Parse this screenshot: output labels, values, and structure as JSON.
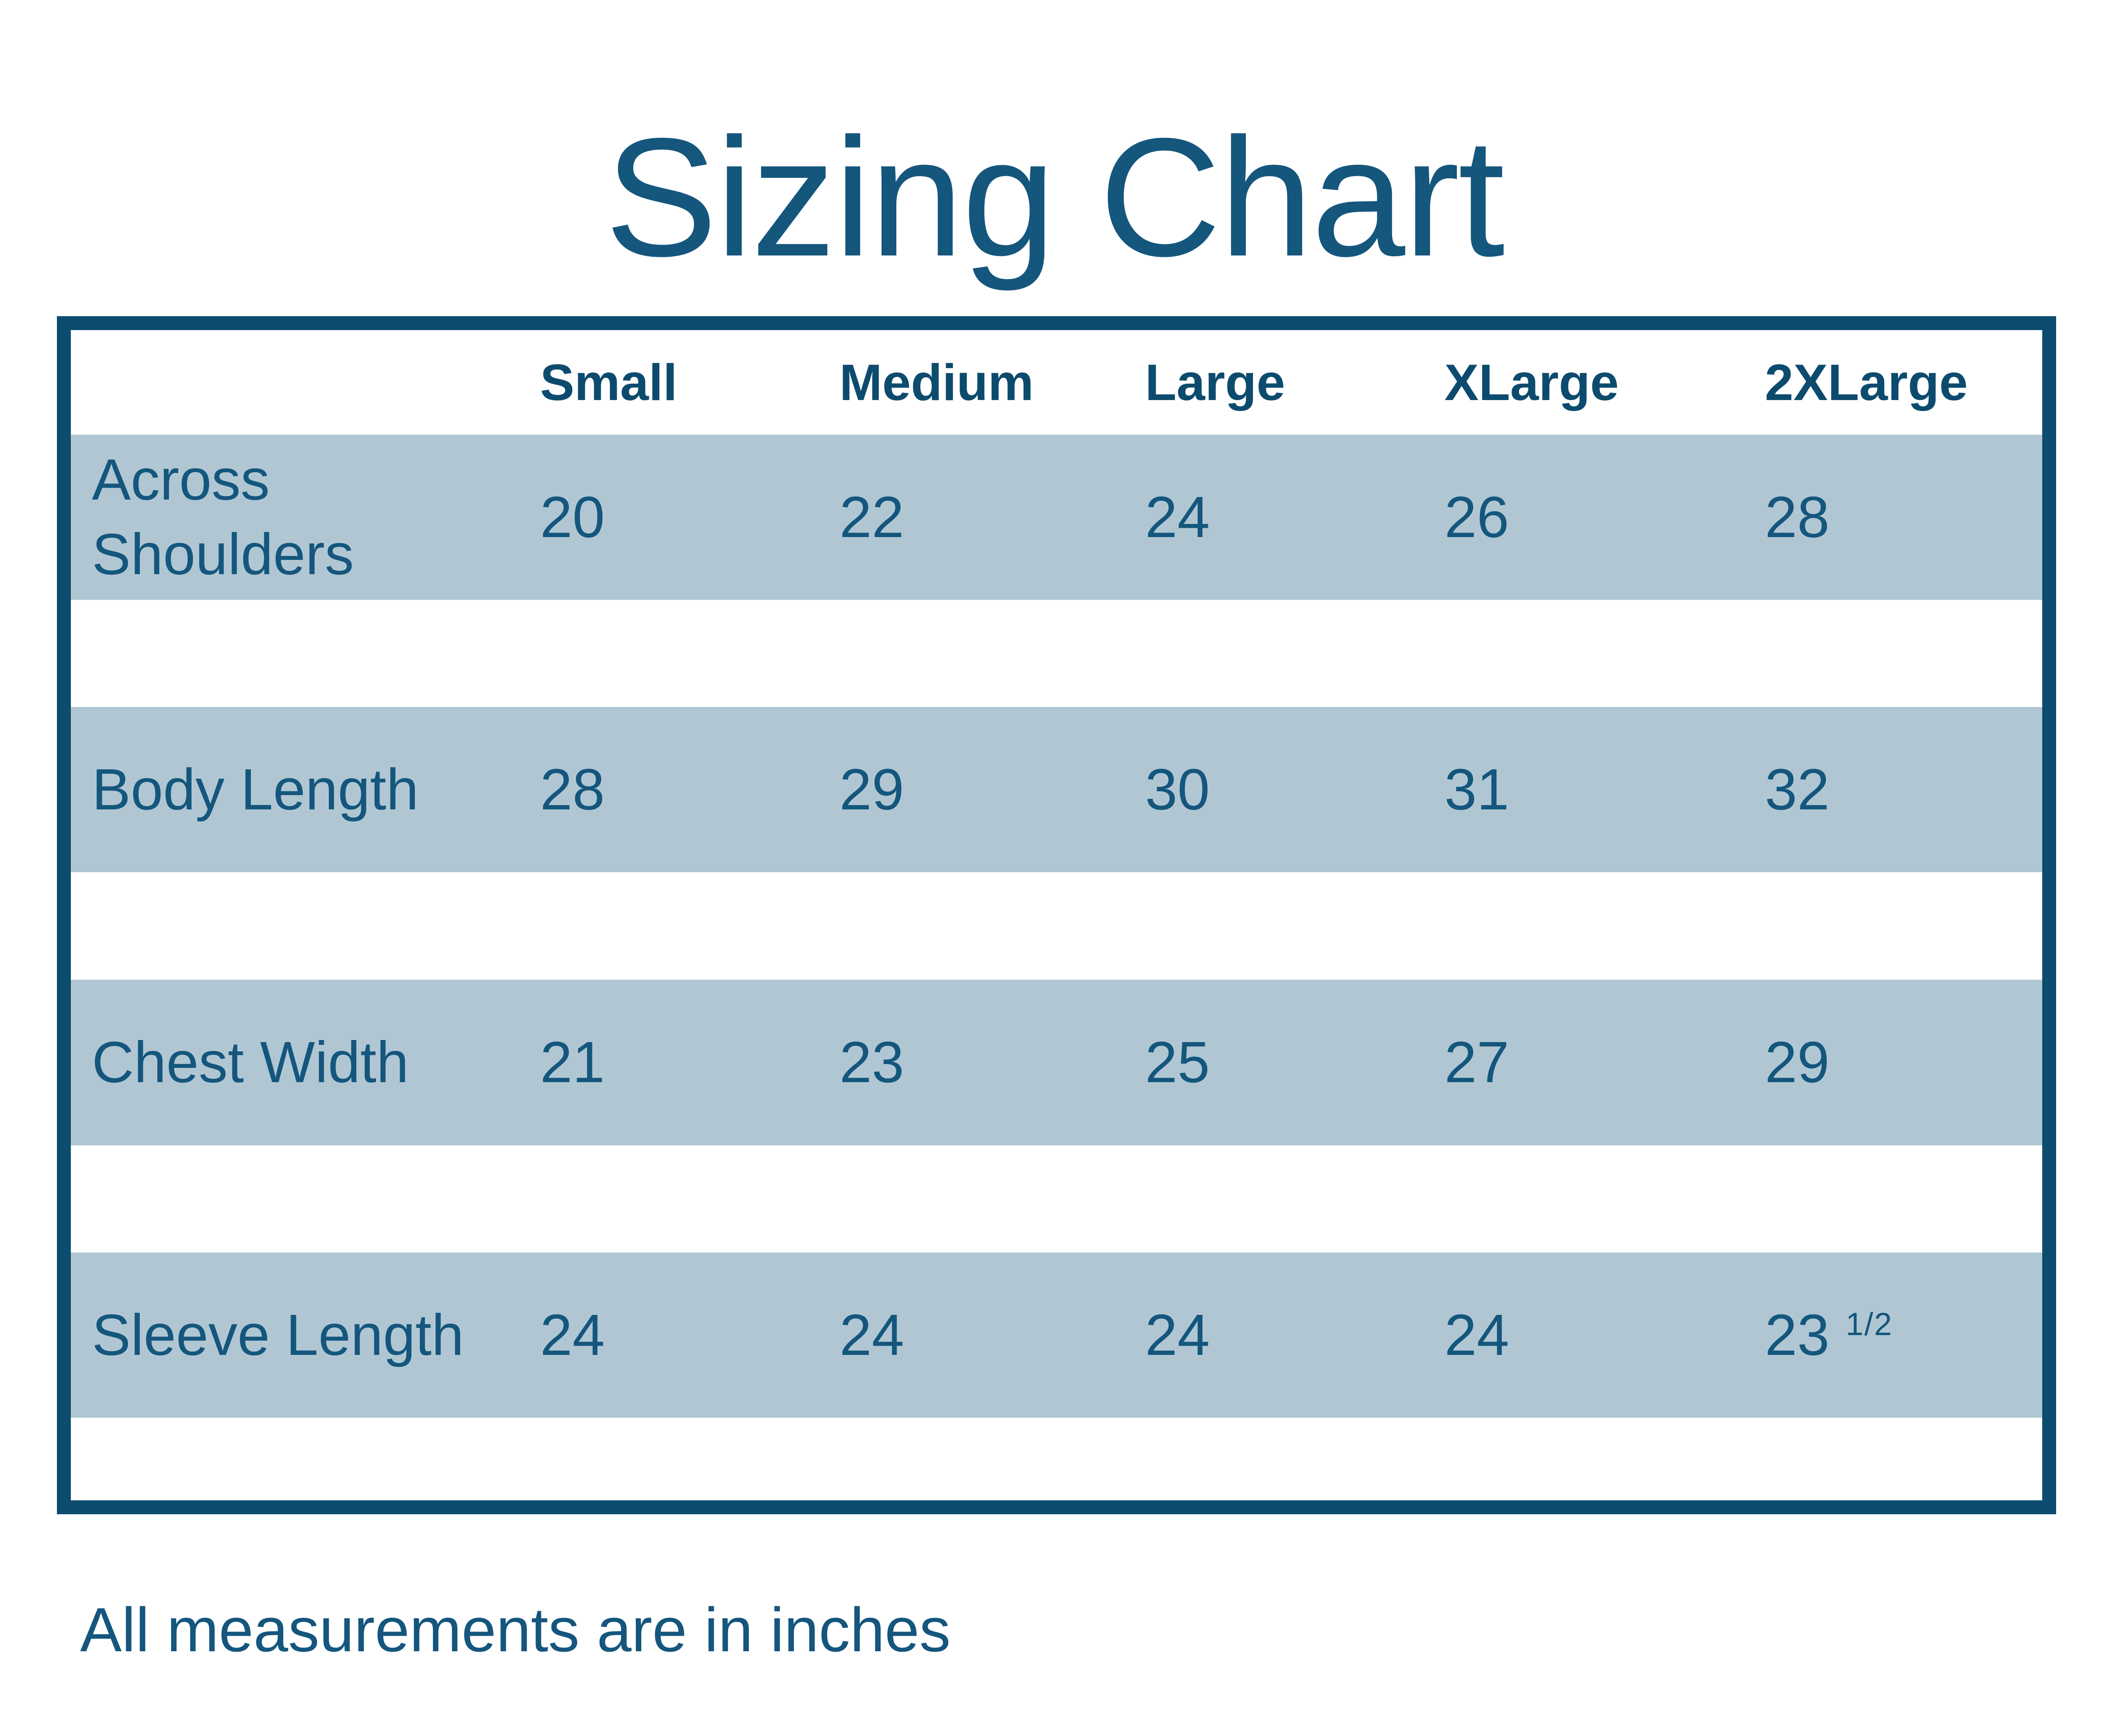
{
  "title": "Sizing Chart",
  "footer_note": "All measurements are in inches",
  "table": {
    "size_headers": [
      "Small",
      "Medium",
      "Large",
      "XLarge",
      "2XLarge"
    ],
    "rows": [
      {
        "label": "Across Shoulders",
        "values": [
          "20",
          "22",
          "24",
          "26",
          "28"
        ]
      },
      {
        "label": "Body Length",
        "values": [
          "28",
          "29",
          "30",
          "31",
          "32"
        ]
      },
      {
        "label": "Chest Width",
        "values": [
          "21",
          "23",
          "25",
          "27",
          "29"
        ]
      },
      {
        "label": "Sleeve Length",
        "values": [
          "24",
          "24",
          "24",
          "24",
          "23 1/2"
        ]
      }
    ]
  },
  "colors": {
    "border": "#0b4c6f",
    "band": "#b0c7d3",
    "text": "#14567d",
    "header_text": "#0d4b6e",
    "background": "#ffffff"
  },
  "chart_data": {
    "type": "table",
    "title": "Sizing Chart",
    "columns": [
      "Small",
      "Medium",
      "Large",
      "XLarge",
      "2XLarge"
    ],
    "row_labels": [
      "Across Shoulders",
      "Body Length",
      "Chest Width",
      "Sleeve Length"
    ],
    "series": [
      {
        "name": "Across Shoulders",
        "values": [
          20,
          22,
          24,
          26,
          28
        ]
      },
      {
        "name": "Body Length",
        "values": [
          28,
          29,
          30,
          31,
          32
        ]
      },
      {
        "name": "Chest Width",
        "values": [
          21,
          23,
          25,
          27,
          29
        ]
      },
      {
        "name": "Sleeve Length",
        "values": [
          24,
          24,
          24,
          24,
          23.5
        ]
      }
    ],
    "units": "inches",
    "note": "All measurements are in inches"
  }
}
